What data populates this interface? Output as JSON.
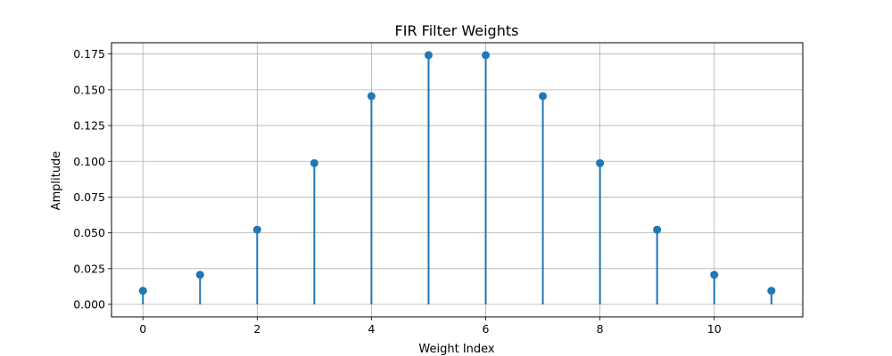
{
  "chart_data": {
    "type": "stem",
    "title": "FIR Filter Weights",
    "xlabel": "Weight Index",
    "ylabel": "Amplitude",
    "x": [
      0,
      1,
      2,
      3,
      4,
      5,
      6,
      7,
      8,
      9,
      10,
      11
    ],
    "values": [
      0.0095,
      0.0207,
      0.0522,
      0.0987,
      0.1456,
      0.1742,
      0.1742,
      0.1456,
      0.0987,
      0.0522,
      0.0207,
      0.0095
    ],
    "xlim": [
      -0.55,
      11.55
    ],
    "ylim": [
      -0.0087,
      0.1829
    ],
    "xticks": [
      0,
      2,
      4,
      6,
      8,
      10
    ],
    "xtick_labels": [
      "0",
      "2",
      "4",
      "6",
      "8",
      "10"
    ],
    "yticks": [
      0,
      0.025,
      0.05,
      0.075,
      0.1,
      0.125,
      0.15,
      0.175
    ],
    "ytick_labels": [
      "0.000",
      "0.025",
      "0.050",
      "0.075",
      "0.100",
      "0.125",
      "0.150",
      "0.175"
    ],
    "grid": true,
    "color": "#1f77b4"
  }
}
